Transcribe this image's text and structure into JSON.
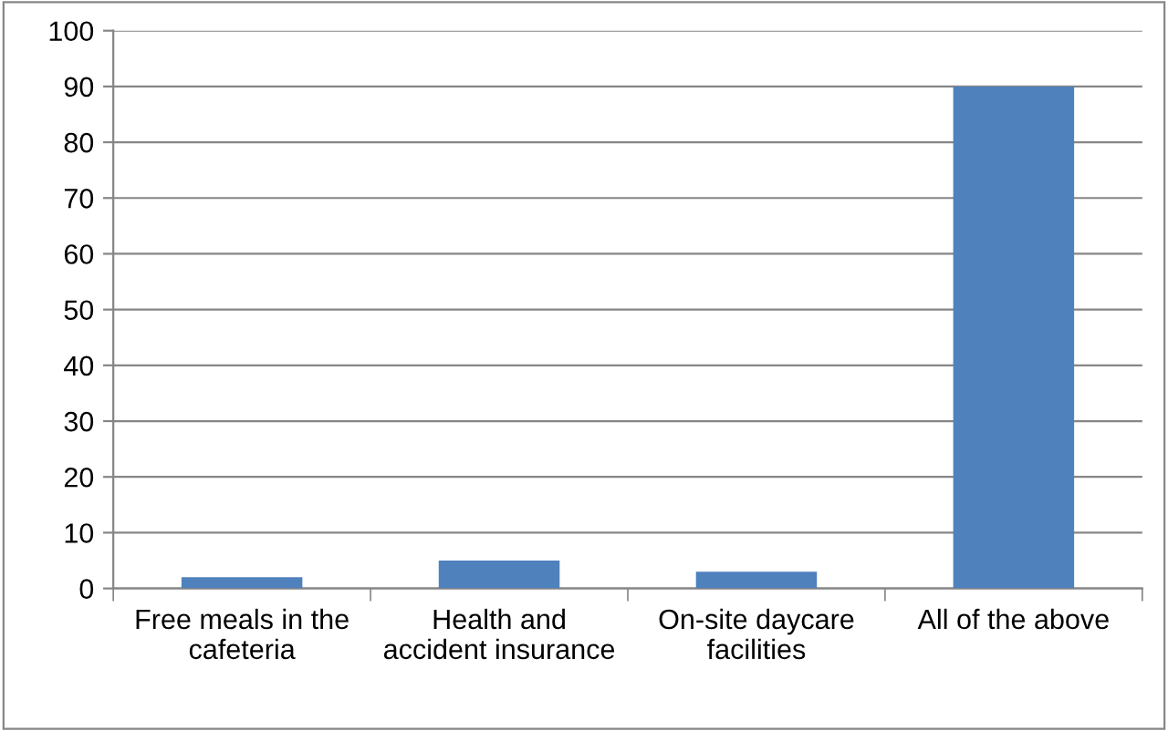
{
  "chart_data": {
    "type": "bar",
    "categories": [
      "Free meals in the\ncafeteria",
      "Health and\naccident insurance",
      "On-site daycare\nfacilities",
      "All of the above"
    ],
    "values": [
      2,
      5,
      3,
      90
    ],
    "color": "#4f81bd",
    "ylim": [
      0,
      100
    ],
    "yticks": [
      0,
      10,
      20,
      30,
      40,
      50,
      60,
      70,
      80,
      90,
      100
    ],
    "grid": "y",
    "legend": false
  }
}
